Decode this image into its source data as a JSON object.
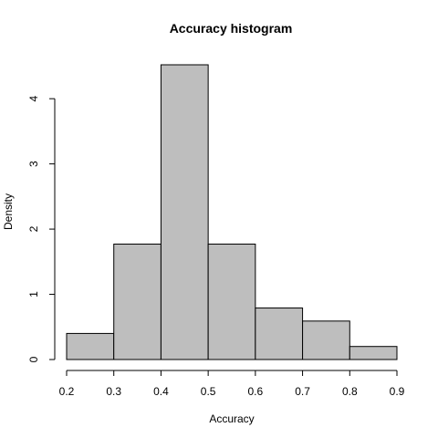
{
  "chart_data": {
    "type": "bar",
    "title": "Accuracy histogram",
    "xlabel": "Accuracy",
    "ylabel": "Density",
    "bins": [
      {
        "start": 0.2,
        "end": 0.3,
        "density": 0.4
      },
      {
        "start": 0.3,
        "end": 0.4,
        "density": 1.77
      },
      {
        "start": 0.4,
        "end": 0.5,
        "density": 4.52
      },
      {
        "start": 0.5,
        "end": 0.6,
        "density": 1.77
      },
      {
        "start": 0.6,
        "end": 0.7,
        "density": 0.79
      },
      {
        "start": 0.7,
        "end": 0.8,
        "density": 0.59
      },
      {
        "start": 0.8,
        "end": 0.9,
        "density": 0.2
      }
    ],
    "x_ticks": [
      "0.2",
      "0.3",
      "0.4",
      "0.5",
      "0.6",
      "0.7",
      "0.8",
      "0.9"
    ],
    "y_ticks": [
      "0",
      "1",
      "2",
      "3",
      "4"
    ],
    "xlim": [
      0.2,
      0.9
    ],
    "ylim": [
      0,
      4.52
    ],
    "bar_color": "#bebebe",
    "border_color": "#000000",
    "grid": false
  }
}
